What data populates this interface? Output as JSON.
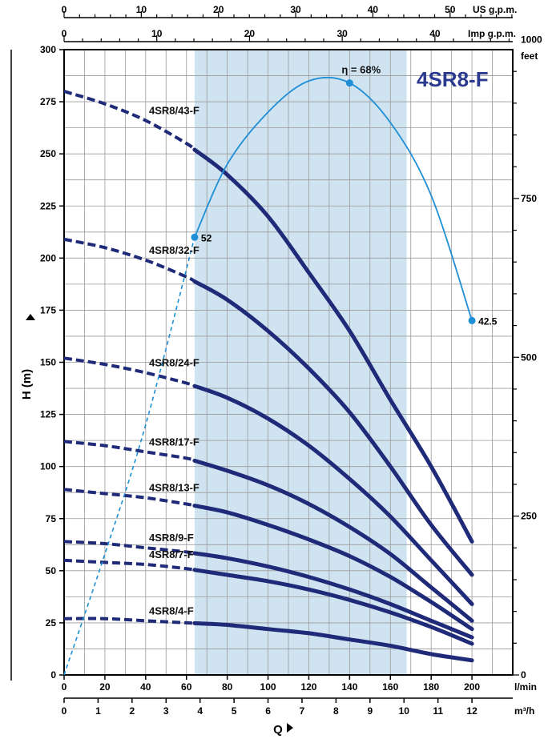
{
  "chart_data": {
    "type": "line",
    "title": "4SR8-F",
    "ylabel": "H (m)",
    "xlabel": "Q",
    "x_unit_main": "l/min",
    "x_unit_m3h": "m³/h",
    "x_unit_top1": "US g.p.m.",
    "x_unit_top2": "Imp g.p.m.",
    "y_unit_right": "feet",
    "xlim": [
      0,
      220
    ],
    "ylim": [
      0,
      300
    ],
    "x_ticks_main": [
      "0",
      "20",
      "40",
      "60",
      "80",
      "100",
      "120",
      "140",
      "160",
      "180",
      "200"
    ],
    "x_ticks_m3h": [
      "0",
      "1",
      "2",
      "3",
      "4",
      "5",
      "6",
      "7",
      "8",
      "9",
      "10",
      "11",
      "12"
    ],
    "x_ticks_top_us": [
      "0",
      "10",
      "20",
      "30",
      "40",
      "50"
    ],
    "x_ticks_top_imp": [
      "0",
      "10",
      "20",
      "30",
      "40"
    ],
    "y_ticks_left": [
      "0",
      "25",
      "50",
      "75",
      "100",
      "125",
      "150",
      "175",
      "200",
      "225",
      "250",
      "275",
      "300"
    ],
    "y_ticks_right": [
      "0",
      "250",
      "500",
      "750",
      "1000"
    ],
    "recommended_range": [
      64,
      168
    ],
    "series": [
      {
        "name": "4SR8/43-F",
        "x": [
          0,
          20,
          40,
          60,
          80,
          100,
          120,
          140,
          160,
          180,
          200
        ],
        "y": [
          280,
          274,
          266,
          255,
          240,
          220,
          193,
          165,
          132,
          100,
          64
        ]
      },
      {
        "name": "4SR8/32-F",
        "x": [
          0,
          20,
          40,
          60,
          80,
          100,
          120,
          140,
          160,
          180,
          200
        ],
        "y": [
          209,
          205,
          199,
          191,
          180,
          165,
          147,
          126,
          100,
          72,
          48
        ]
      },
      {
        "name": "4SR8/24-F",
        "x": [
          0,
          20,
          40,
          60,
          80,
          100,
          120,
          140,
          160,
          180,
          200
        ],
        "y": [
          152,
          149,
          145,
          140,
          133,
          123,
          110,
          94,
          76,
          55,
          34
        ]
      },
      {
        "name": "4SR8/17-F",
        "x": [
          0,
          20,
          40,
          60,
          80,
          100,
          120,
          140,
          160,
          180,
          200
        ],
        "y": [
          112,
          110,
          107,
          104,
          98,
          91,
          82,
          71,
          58,
          42,
          26
        ]
      },
      {
        "name": "4SR8/13-F",
        "x": [
          0,
          20,
          40,
          60,
          80,
          100,
          120,
          140,
          160,
          180,
          200
        ],
        "y": [
          89,
          87,
          85,
          82,
          78,
          72,
          65,
          57,
          47,
          35,
          22
        ]
      },
      {
        "name": "4SR8/9-F",
        "x": [
          0,
          20,
          40,
          60,
          80,
          100,
          120,
          140,
          160,
          180,
          200
        ],
        "y": [
          64,
          63,
          61,
          59,
          56,
          52,
          47,
          41,
          34,
          26,
          18
        ]
      },
      {
        "name": "4SR8/7-F",
        "x": [
          0,
          20,
          40,
          60,
          80,
          100,
          120,
          140,
          160,
          180,
          200
        ],
        "y": [
          55,
          54,
          53,
          51,
          48,
          45,
          41,
          36,
          30,
          23,
          15
        ]
      },
      {
        "name": "4SR8/4-F",
        "x": [
          0,
          20,
          40,
          60,
          80,
          100,
          120,
          140,
          160,
          180,
          200
        ],
        "y": [
          27,
          27,
          26,
          25,
          24,
          22,
          20,
          17,
          14,
          10,
          7
        ]
      }
    ],
    "efficiency": {
      "label": "η = 68%",
      "x": [
        0,
        20,
        40,
        64,
        80,
        100,
        120,
        140,
        160,
        180,
        200
      ],
      "y": [
        0,
        58,
        120,
        210,
        245,
        270,
        285,
        284,
        265,
        230,
        170
      ],
      "points": [
        {
          "x": 64,
          "y": 210,
          "label": "52"
        },
        {
          "x": 140,
          "y": 284,
          "label": ""
        },
        {
          "x": 200,
          "y": 170,
          "label": "42.5"
        }
      ]
    },
    "grid": true
  }
}
